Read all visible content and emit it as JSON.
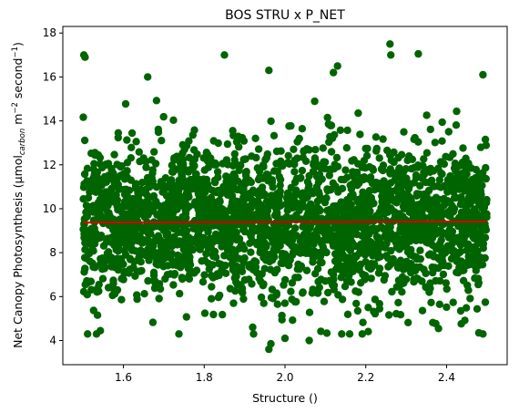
{
  "chart_data": {
    "type": "scatter",
    "title": "BOS STRU x P_NET",
    "xlabel": "Structure ()",
    "ylabel": {
      "prefix": "Net Canopy Photosynthesis (μmol",
      "sub": "carbon",
      "mid": " m",
      "sup1": "−2",
      "mid2": " second",
      "sup2": "−1",
      "suffix": ")"
    },
    "xlim": [
      1.45,
      2.55
    ],
    "ylim": [
      2.9,
      18.3
    ],
    "xticks": [
      1.6,
      1.8,
      2.0,
      2.2,
      2.4
    ],
    "xtick_labels": [
      "1.6",
      "1.8",
      "2.0",
      "2.2",
      "2.4"
    ],
    "yticks": [
      4,
      6,
      8,
      10,
      12,
      14,
      16,
      18
    ],
    "ytick_labels": [
      "4",
      "6",
      "8",
      "10",
      "12",
      "14",
      "16",
      "18"
    ],
    "x_range": [
      1.5,
      2.5
    ],
    "grid": false,
    "legend": "none",
    "series": [
      {
        "kind": "scatter",
        "color": "#006400",
        "center": 9.4,
        "dense_band": [
          6.8,
          12.4
        ],
        "outer_band": [
          4.3,
          16.3
        ],
        "highlighted_points": [
          [
            1.502,
            17.0
          ],
          [
            1.505,
            16.9
          ],
          [
            1.85,
            17.0
          ],
          [
            2.26,
            17.5
          ],
          [
            2.262,
            17.0
          ],
          [
            2.33,
            17.05
          ],
          [
            2.13,
            16.5
          ],
          [
            2.49,
            16.1
          ],
          [
            1.96,
            3.6
          ],
          [
            1.965,
            3.85
          ],
          [
            2.0,
            4.1
          ],
          [
            2.06,
            4.0
          ],
          [
            2.16,
            4.3
          ],
          [
            1.92,
            4.6
          ],
          [
            2.38,
            4.55
          ],
          [
            2.49,
            4.3
          ],
          [
            2.48,
            4.35
          ],
          [
            1.66,
            16.0
          ],
          [
            1.96,
            16.3
          ],
          [
            2.12,
            16.2
          ]
        ]
      },
      {
        "kind": "line",
        "color": "#cc0000",
        "points": [
          [
            1.5,
            9.37
          ],
          [
            2.5,
            9.42
          ]
        ]
      }
    ]
  }
}
